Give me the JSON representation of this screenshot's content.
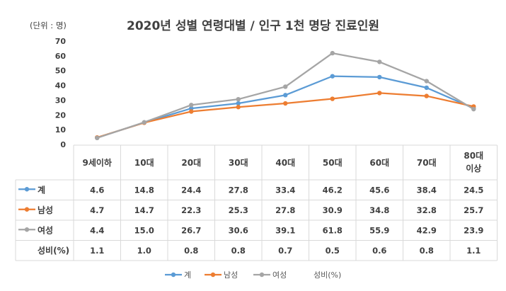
{
  "chart_data": {
    "type": "line",
    "title": "2020년 성별 연령대별 / 인구 1천 명당 진료인원",
    "unit_label": "(단위 : 명)",
    "categories": [
      "9세이하",
      "10대",
      "20대",
      "30대",
      "40대",
      "50대",
      "60대",
      "70대",
      "80대 이상"
    ],
    "ylim": [
      0,
      70
    ],
    "yticks": [
      "0",
      "10",
      "20",
      "30",
      "40",
      "50",
      "60",
      "70"
    ],
    "grid": false,
    "legend": "bottom",
    "series": [
      {
        "name": "계",
        "color": "#5b9bd5",
        "values": [
          4.6,
          14.8,
          24.4,
          27.8,
          33.4,
          46.2,
          45.6,
          38.4,
          24.5
        ],
        "labels": [
          "4.6",
          "14.8",
          "24.4",
          "27.8",
          "33.4",
          "46.2",
          "45.6",
          "38.4",
          "24.5"
        ]
      },
      {
        "name": "남성",
        "color": "#ed7d31",
        "values": [
          4.7,
          14.7,
          22.3,
          25.3,
          27.8,
          30.9,
          34.8,
          32.8,
          25.7
        ],
        "labels": [
          "4.7",
          "14.7",
          "22.3",
          "25.3",
          "27.8",
          "30.9",
          "34.8",
          "32.8",
          "25.7"
        ]
      },
      {
        "name": "여성",
        "color": "#a5a5a5",
        "values": [
          4.4,
          15.0,
          26.7,
          30.6,
          39.1,
          61.8,
          55.9,
          42.9,
          23.9
        ],
        "labels": [
          "4.4",
          "15.0",
          "26.7",
          "30.6",
          "39.1",
          "61.8",
          "55.9",
          "42.9",
          "23.9"
        ]
      }
    ],
    "extra_row": {
      "name": "성비(%)",
      "labels": [
        "1.1",
        "1.0",
        "0.8",
        "0.8",
        "0.7",
        "0.5",
        "0.6",
        "0.8",
        "1.1"
      ]
    },
    "legend_entries": [
      "계",
      "남성",
      "여성",
      "성비(%)"
    ]
  }
}
